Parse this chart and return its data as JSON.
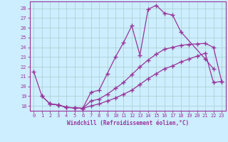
{
  "xlabel": "Windchill (Refroidissement éolien,°C)",
  "bg_color": "#cceeff",
  "line_color": "#993399",
  "grid_color": "#aacccc",
  "xlim": [
    -0.5,
    23.5
  ],
  "ylim": [
    17.5,
    28.7
  ],
  "yticks": [
    18,
    19,
    20,
    21,
    22,
    23,
    24,
    25,
    26,
    27,
    28
  ],
  "xticks": [
    0,
    1,
    2,
    3,
    4,
    5,
    6,
    7,
    8,
    9,
    10,
    11,
    12,
    13,
    14,
    15,
    16,
    17,
    18,
    19,
    20,
    21,
    22,
    23
  ],
  "line1_x": [
    0,
    1,
    2,
    3,
    4,
    5,
    6,
    7,
    8,
    9,
    10,
    11,
    12,
    13,
    14,
    15,
    16,
    17,
    18,
    21,
    22
  ],
  "line1_y": [
    21.5,
    19.0,
    18.2,
    18.1,
    17.85,
    17.8,
    17.75,
    19.4,
    19.6,
    21.3,
    23.0,
    24.5,
    26.2,
    23.2,
    27.9,
    28.3,
    27.5,
    27.3,
    25.6,
    22.8,
    21.8
  ],
  "line2_x": [
    1,
    2,
    3,
    4,
    5,
    6,
    7,
    8,
    9,
    10,
    11,
    12,
    13,
    14,
    15,
    16,
    17,
    18,
    19,
    20,
    21,
    22,
    23
  ],
  "line2_y": [
    19.0,
    18.2,
    18.1,
    17.85,
    17.8,
    17.75,
    18.5,
    18.7,
    19.2,
    19.8,
    20.4,
    21.2,
    22.0,
    22.7,
    23.3,
    23.8,
    24.0,
    24.2,
    24.3,
    24.35,
    24.4,
    24.0,
    20.5
  ],
  "line3_x": [
    2,
    3,
    4,
    5,
    6,
    7,
    8,
    9,
    10,
    11,
    12,
    13,
    14,
    15,
    16,
    17,
    18,
    19,
    20,
    21,
    22,
    23
  ],
  "line3_y": [
    18.2,
    18.1,
    17.85,
    17.8,
    17.75,
    18.0,
    18.2,
    18.5,
    18.8,
    19.2,
    19.6,
    20.2,
    20.8,
    21.3,
    21.8,
    22.1,
    22.5,
    22.8,
    23.1,
    23.4,
    20.4,
    20.5
  ]
}
